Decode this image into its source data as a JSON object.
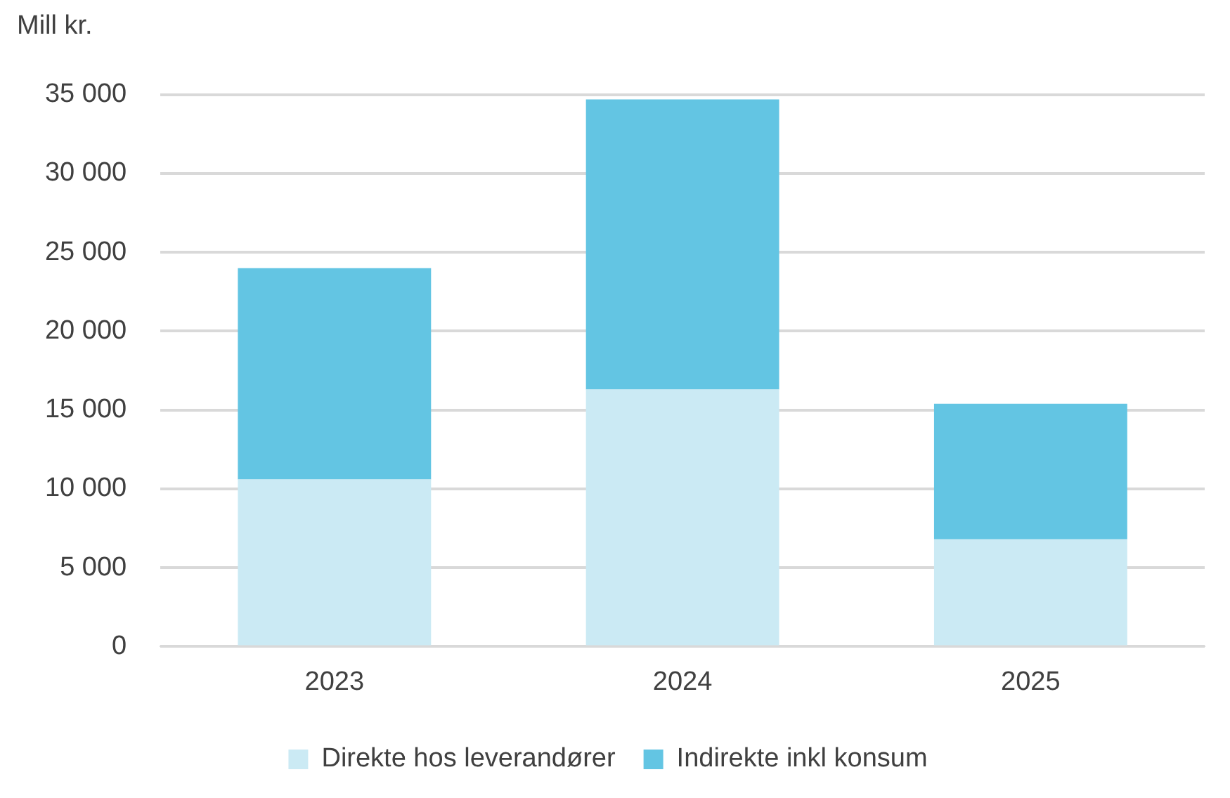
{
  "chart_data": {
    "type": "bar",
    "ylabel": "Mill kr.",
    "categories": [
      "2023",
      "2024",
      "2025"
    ],
    "stacked": true,
    "series": [
      {
        "name": "Direkte hos leverandører",
        "color": "#cbeaf4",
        "values": [
          10600,
          16300,
          6800
        ]
      },
      {
        "name": "Indirekte inkl konsum",
        "color": "#63c5e3",
        "values": [
          13400,
          18400,
          8600
        ]
      }
    ],
    "ylim": [
      0,
      35000
    ],
    "yticks": [
      {
        "value": 0,
        "label": "0"
      },
      {
        "value": 5000,
        "label": "5 000"
      },
      {
        "value": 10000,
        "label": "10 000"
      },
      {
        "value": 15000,
        "label": "15 000"
      },
      {
        "value": 20000,
        "label": "20 000"
      },
      {
        "value": 25000,
        "label": "25 000"
      },
      {
        "value": 30000,
        "label": "30 000"
      },
      {
        "value": 35000,
        "label": "35 000"
      }
    ],
    "grid": "y",
    "legend": "bottom"
  }
}
